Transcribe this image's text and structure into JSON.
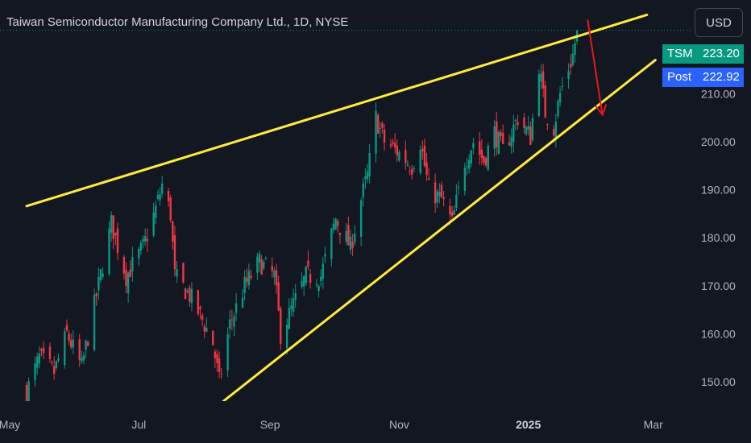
{
  "header": {
    "title": "Taiwan Semiconductor Manufacturing Company Ltd., 1D, NYSE",
    "currency": "USD"
  },
  "price_badges": {
    "last": {
      "label": "TSM",
      "value": "223.20",
      "color": "#089981"
    },
    "post": {
      "label": "Post",
      "value": "222.92",
      "color": "#2962ff"
    }
  },
  "colors": {
    "up": "#089981",
    "down": "#f23645",
    "trendline": "#ffeb3b",
    "arrow": "#e8181b",
    "background": "#131722",
    "price_line": "#089981"
  },
  "chart_data": {
    "type": "candlestick",
    "title": "Taiwan Semiconductor Manufacturing Company Ltd., 1D, NYSE",
    "y_ticks": [
      "150.00",
      "160.00",
      "170.00",
      "180.00",
      "190.00",
      "200.00",
      "210.00"
    ],
    "ylim": [
      146.0,
      229.5
    ],
    "x_ticks": [
      {
        "label": "May",
        "date": "2024-05-01",
        "bold": false
      },
      {
        "label": "Jul",
        "date": "2024-07-01",
        "bold": false
      },
      {
        "label": "Sep",
        "date": "2024-09-01",
        "bold": false
      },
      {
        "label": "Nov",
        "date": "2024-11-01",
        "bold": false
      },
      {
        "label": "2025",
        "date": "2025-01-01",
        "bold": true
      },
      {
        "label": "Mar",
        "date": "2025-03-01",
        "bold": false
      }
    ],
    "xlim": [
      "2024-05-01",
      "2025-03-19"
    ],
    "last_price": 223.2,
    "post_price": 222.92,
    "close_anchors": [
      [
        "2024-05-09",
        148.0
      ],
      [
        "2024-05-15",
        155.0
      ],
      [
        "2024-05-22",
        152.0
      ],
      [
        "2024-05-28",
        160.0
      ],
      [
        "2024-06-04",
        153.0
      ],
      [
        "2024-06-11",
        168.0
      ],
      [
        "2024-06-18",
        183.0
      ],
      [
        "2024-06-25",
        172.0
      ],
      [
        "2024-07-03",
        178.0
      ],
      [
        "2024-07-09",
        186.0
      ],
      [
        "2024-07-12",
        191.0
      ],
      [
        "2024-07-16",
        185.0
      ],
      [
        "2024-07-18",
        172.0
      ],
      [
        "2024-07-25",
        168.0
      ],
      [
        "2024-08-01",
        162.0
      ],
      [
        "2024-08-05",
        158.0
      ],
      [
        "2024-08-08",
        150.0
      ],
      [
        "2024-08-13",
        162.0
      ],
      [
        "2024-08-20",
        170.0
      ],
      [
        "2024-08-27",
        175.0
      ],
      [
        "2024-09-03",
        172.0
      ],
      [
        "2024-09-06",
        160.0
      ],
      [
        "2024-09-11",
        165.0
      ],
      [
        "2024-09-18",
        172.0
      ],
      [
        "2024-09-25",
        172.0
      ],
      [
        "2024-10-02",
        184.0
      ],
      [
        "2024-10-09",
        178.0
      ],
      [
        "2024-10-14",
        188.0
      ],
      [
        "2024-10-17",
        193.0
      ],
      [
        "2024-10-21",
        205.0
      ],
      [
        "2024-10-25",
        200.0
      ],
      [
        "2024-10-31",
        198.0
      ],
      [
        "2024-11-07",
        195.0
      ],
      [
        "2024-11-11",
        200.0
      ],
      [
        "2024-11-15",
        190.0
      ],
      [
        "2024-11-21",
        188.0
      ],
      [
        "2024-11-26",
        183.0
      ],
      [
        "2024-12-02",
        196.0
      ],
      [
        "2024-12-06",
        200.0
      ],
      [
        "2024-12-11",
        196.0
      ],
      [
        "2024-12-16",
        202.0
      ],
      [
        "2024-12-20",
        198.0
      ],
      [
        "2024-12-27",
        205.0
      ],
      [
        "2025-01-02",
        201.0
      ],
      [
        "2025-01-06",
        216.0
      ],
      [
        "2025-01-09",
        206.0
      ],
      [
        "2025-01-13",
        203.0
      ],
      [
        "2025-01-16",
        210.0
      ],
      [
        "2025-01-22",
        218.0
      ],
      [
        "2025-01-24",
        223.2
      ]
    ],
    "trendlines": [
      {
        "name": "",
        "from": [
          "2024-05-09",
          186.6
        ],
        "to": [
          "2025-02-26",
          226.4
        ]
      },
      {
        "name": "",
        "from": [
          "2024-08-10",
          146.0
        ],
        "to": [
          "2025-03-02",
          217.0
        ]
      }
    ],
    "arrow": {
      "from": [
        "2025-01-29",
        225.4
      ],
      "to": [
        "2025-02-05",
        205.6
      ]
    },
    "grid": false,
    "legend": "none"
  }
}
